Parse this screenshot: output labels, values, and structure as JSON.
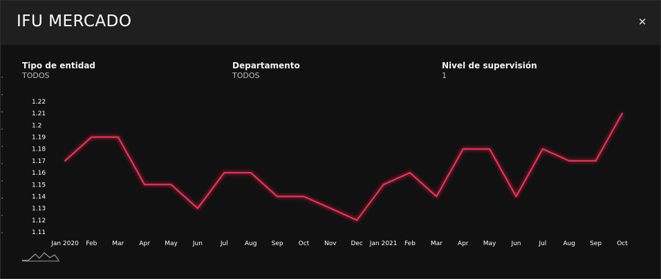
{
  "header": {
    "title": "IFU MERCADO",
    "close_label": "×"
  },
  "filters": [
    {
      "label": "Tipo de entidad",
      "value": "TODOS"
    },
    {
      "label": "Departamento",
      "value": "TODOS"
    },
    {
      "label": "Nivel de supervisión",
      "value": "1"
    }
  ],
  "colors": {
    "line": "#ff2d55",
    "background": "#111111",
    "header": "#1f1f1f"
  },
  "chart_data": {
    "type": "line",
    "title": "",
    "xlabel": "",
    "ylabel": "",
    "categories": [
      "Jan 2020",
      "Feb",
      "Mar",
      "Apr",
      "May",
      "Jun",
      "Jul",
      "Aug",
      "Sep",
      "Oct",
      "Nov",
      "Dec",
      "Jan 2021",
      "Feb",
      "Mar",
      "Apr",
      "May",
      "Jun",
      "Jul",
      "Aug",
      "Sep",
      "Oct"
    ],
    "series": [
      {
        "values": [
          1.17,
          1.19,
          1.19,
          1.15,
          1.15,
          1.13,
          1.16,
          1.16,
          1.14,
          1.14,
          1.13,
          1.12,
          1.15,
          1.16,
          1.14,
          1.18,
          1.18,
          1.14,
          1.18,
          1.17,
          1.17,
          1.21
        ]
      }
    ],
    "yticks": [
      "1.22",
      "1.21",
      "1.2",
      "1.19",
      "1.18",
      "1.17",
      "1.16",
      "1.15",
      "1.14",
      "1.13",
      "1.12",
      "1.11"
    ],
    "ylim": [
      1.11,
      1.22
    ],
    "grid": false,
    "legend": "none"
  },
  "footer": {
    "logo_icon": "mountain-logo-icon"
  }
}
